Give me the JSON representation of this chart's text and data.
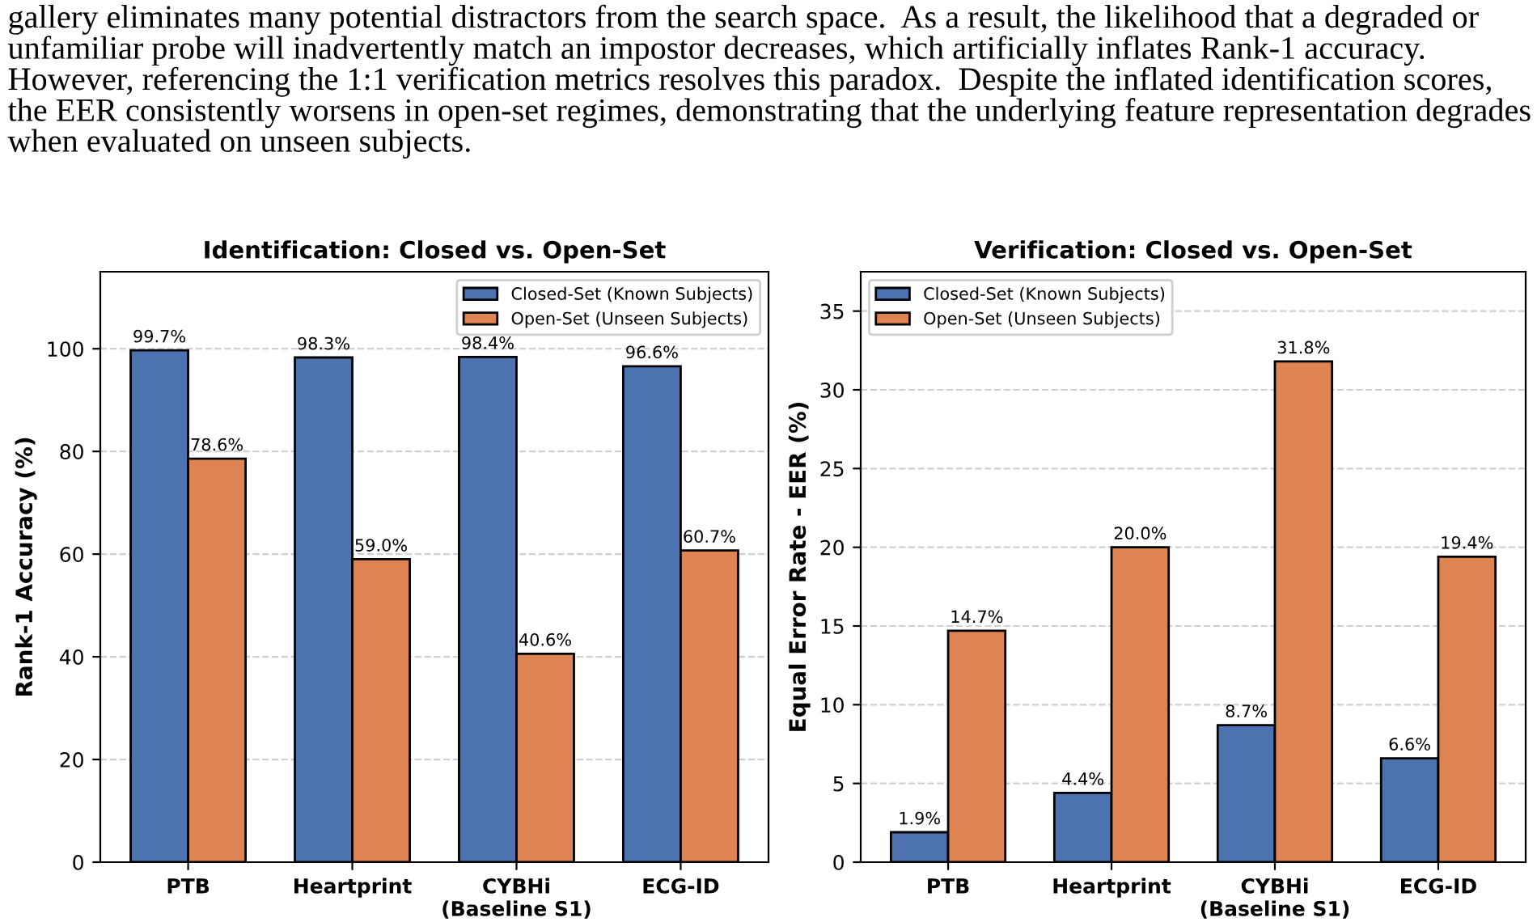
{
  "chart_data": [
    {
      "type": "bar",
      "title": "Identification: Closed vs. Open-Set",
      "ylabel": "Rank-1 Accuracy (%)",
      "annotations": [
        "gallery eliminates many potential distractors from the search space.  As a result, the likelihood that a degraded or unfamiliar probe will inadvertently match an impostor decreases, which artificially inflates Rank-1 accuracy. However, referencing the 1:1 verification metrics resolves this paradox.  Despite the inflated identification scores, the EER consistently worsens in open-set regimes, demonstrating that the underlying feature representation degrades when evaluated on unseen subjects."
      ],
      "categories": [
        "PTB",
        "Heartprint",
        "CYBHi\n(Baseline S1)",
        "ECG-ID"
      ],
      "series": [
        {
          "name": "Closed-Set (Known Subjects)",
          "color": "#4c72b0",
          "values": [
            99.7,
            98.3,
            98.4,
            96.6
          ],
          "value_labels": [
            "99.7%",
            "98.3%",
            "98.4%",
            "96.6%"
          ]
        },
        {
          "name": "Open-Set (Unseen Subjects)",
          "color": "#dd8452",
          "values": [
            78.6,
            59.0,
            40.6,
            60.7
          ],
          "value_labels": [
            "78.6%",
            "59.0%",
            "40.6%",
            "60.7%"
          ]
        }
      ],
      "ylim": [
        0,
        115
      ],
      "yticks": [
        0,
        20,
        40,
        60,
        80,
        100
      ],
      "grid": "y",
      "legend": "top right"
    },
    {
      "type": "bar",
      "title": "Verification: Closed vs. Open-Set",
      "ylabel": "Equal Error Rate - EER (%)",
      "categories": [
        "PTB",
        "Heartprint",
        "CYBHi\n(Baseline S1)",
        "ECG-ID"
      ],
      "series": [
        {
          "name": "Closed-Set (Known Subjects)",
          "color": "#4c72b0",
          "values": [
            1.9,
            4.4,
            8.7,
            6.6
          ],
          "value_labels": [
            "1.9%",
            "4.4%",
            "8.7%",
            "6.6%"
          ]
        },
        {
          "name": "Open-Set (Unseen Subjects)",
          "color": "#dd8452",
          "values": [
            14.7,
            20.0,
            31.8,
            19.4
          ],
          "value_labels": [
            "14.7%",
            "20.0%",
            "31.8%",
            "19.4%"
          ]
        }
      ],
      "ylim": [
        0,
        37.5
      ],
      "yticks": [
        0,
        5,
        10,
        15,
        20,
        25,
        30,
        35
      ],
      "grid": "y",
      "legend": "top left"
    }
  ]
}
